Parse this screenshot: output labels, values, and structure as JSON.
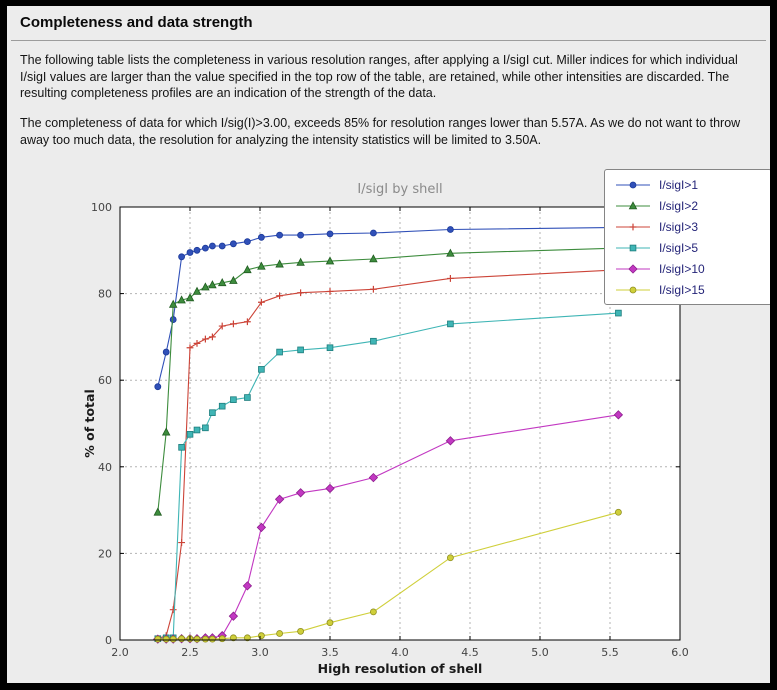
{
  "page": {
    "title": "Completeness and data strength",
    "paragraph1": "The following table lists the completeness in various resolution ranges, after applying a I/sigI cut. Miller indices for which individual I/sigI values are larger than the value specified in the top row of the table, are retained, while other intensities are discarded. The resulting completeness profiles are an indication of the strength of the data.",
    "paragraph2": "The completeness of data for which I/sig(I)>3.00, exceeds  85% for resolution ranges lower than 5.57A. As we do not want to throw away too much data, the resolution for analyzing the intensity statistics will be limited to 3.50A."
  },
  "chart_data": {
    "type": "line",
    "title": "I/sigI by shell",
    "xlabel": "High resolution of shell",
    "ylabel": "% of total",
    "xlim": [
      2.0,
      6.0
    ],
    "ylim": [
      0,
      100
    ],
    "xticks": [
      2.0,
      2.5,
      3.0,
      3.5,
      4.0,
      4.5,
      5.0,
      5.5,
      6.0
    ],
    "xtick_labels": [
      "2.0",
      "2.5",
      "3.0",
      "3.5",
      "4.0",
      "4.5",
      "5.0",
      "5.5",
      "6.0"
    ],
    "yticks": [
      0,
      20,
      40,
      60,
      80,
      100
    ],
    "ytick_labels": [
      "0",
      "20",
      "40",
      "60",
      "80",
      "100"
    ],
    "grid": "dashed",
    "grid_color": "#b3b3b3",
    "plot_bg": "#ffffff",
    "page_bg": "#ececec",
    "legend_position": "top-right",
    "legend_text_color": "#242478",
    "x": [
      2.27,
      2.33,
      2.38,
      2.44,
      2.5,
      2.55,
      2.61,
      2.66,
      2.73,
      2.81,
      2.91,
      3.01,
      3.14,
      3.29,
      3.5,
      3.81,
      4.36,
      5.56
    ],
    "series": [
      {
        "name": "isigi-gt-1",
        "label": "I/sigI>1",
        "color": "#3050b8",
        "edge": "#1c3a9a",
        "marker": "circle",
        "values": [
          58.5,
          66.5,
          74.0,
          88.5,
          89.5,
          90.0,
          90.5,
          91.0,
          91.0,
          91.5,
          92.0,
          93.0,
          93.5,
          93.5,
          93.8,
          94.0,
          94.8,
          95.3
        ]
      },
      {
        "name": "isigi-gt-2",
        "label": "I/sigI>2",
        "color": "#3d8c3d",
        "edge": "#205c20",
        "marker": "triangle",
        "values": [
          29.5,
          48.0,
          77.5,
          78.5,
          79.0,
          80.5,
          81.5,
          82.0,
          82.5,
          83.0,
          85.5,
          86.3,
          86.8,
          87.2,
          87.5,
          88.0,
          89.3,
          90.5
        ]
      },
      {
        "name": "isigi-gt-3",
        "label": "I/sigI>3",
        "color": "#cc4438",
        "edge": "#cc4438",
        "marker": "plus",
        "values": [
          0.3,
          1.0,
          7.0,
          22.5,
          67.5,
          68.5,
          69.5,
          70.0,
          72.5,
          73.0,
          73.5,
          78.0,
          79.5,
          80.2,
          80.5,
          81.0,
          83.5,
          85.5
        ]
      },
      {
        "name": "isigi-gt-5",
        "label": "I/sigI>5",
        "color": "#3fb5b5",
        "edge": "#1d7d7d",
        "marker": "square",
        "values": [
          0.3,
          0.5,
          0.5,
          44.5,
          47.5,
          48.5,
          49.0,
          52.5,
          54.0,
          55.5,
          56.0,
          62.5,
          66.5,
          67.0,
          67.5,
          69.0,
          73.0,
          75.5
        ]
      },
      {
        "name": "isigi-gt-10",
        "label": "I/sigI>10",
        "color": "#c238c2",
        "edge": "#8d1f8d",
        "marker": "diamond",
        "values": [
          0.2,
          0.2,
          0.2,
          0.3,
          0.3,
          0.3,
          0.5,
          0.5,
          1.0,
          5.5,
          12.5,
          26.0,
          32.5,
          34.0,
          35.0,
          37.5,
          46.0,
          52.0
        ]
      },
      {
        "name": "isigi-gt-15",
        "label": "I/sigI>15",
        "color": "#cfcf3a",
        "edge": "#8f8f20",
        "marker": "circle",
        "values": [
          0.2,
          0.2,
          0.2,
          0.3,
          0.3,
          0.2,
          0.2,
          0.2,
          0.3,
          0.5,
          0.5,
          1.0,
          1.5,
          2.0,
          4.0,
          6.5,
          19.0,
          29.5
        ]
      }
    ]
  }
}
